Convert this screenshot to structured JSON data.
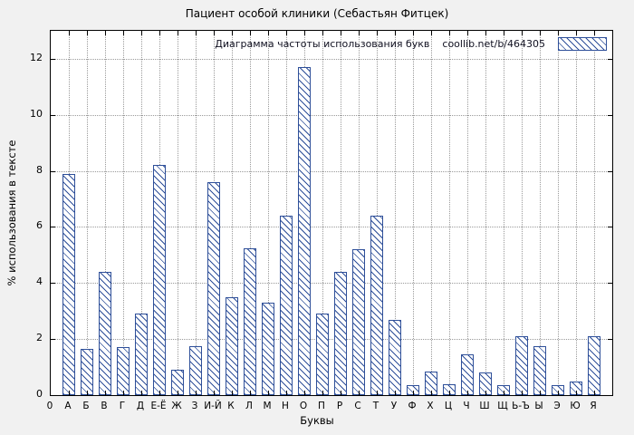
{
  "chart_data": {
    "type": "bar",
    "title": "Пациент особой клиники (Себастьян Фитцек)",
    "xlabel": "Буквы",
    "ylabel": "% использования в тексте",
    "legend_label": "Диаграмма частоты использования букв",
    "legend_url": "coollib.net/b/464305",
    "origin_label": "0",
    "ylim": [
      0,
      13
    ],
    "yticks": [
      0,
      2,
      4,
      6,
      8,
      10,
      12
    ],
    "grid": true,
    "legend_position": "top-right-inside",
    "bar_stroke_color": "#2e4f99",
    "figure_bg": "#f1f1f1",
    "plot_bg": "#ffffff",
    "categories": [
      "А",
      "Б",
      "В",
      "Г",
      "Д",
      "Е-Ё",
      "Ж",
      "З",
      "И-Й",
      "К",
      "Л",
      "М",
      "Н",
      "О",
      "П",
      "Р",
      "С",
      "Т",
      "У",
      "Ф",
      "Х",
      "Ц",
      "Ч",
      "Ш",
      "Щ",
      "Ь-Ъ",
      "Ы",
      "Э",
      "Ю",
      "Я"
    ],
    "values": [
      7.9,
      1.65,
      4.4,
      1.7,
      2.9,
      8.2,
      0.9,
      1.75,
      7.6,
      3.5,
      5.25,
      3.3,
      6.4,
      11.7,
      2.9,
      4.4,
      5.2,
      6.4,
      2.7,
      0.35,
      0.85,
      0.4,
      1.45,
      0.8,
      0.35,
      2.1,
      1.75,
      0.35,
      0.5,
      2.1
    ]
  }
}
